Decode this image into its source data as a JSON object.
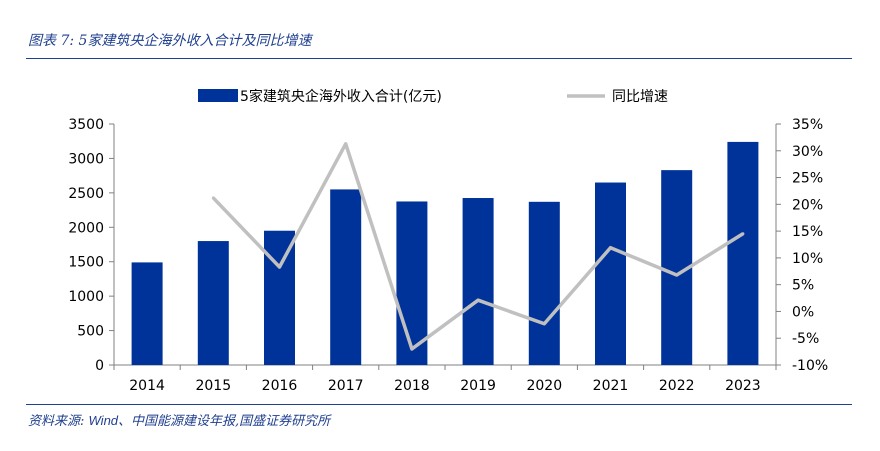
{
  "caption": {
    "label": "图表 7:",
    "title": "5家建筑央企海外收入合计及同比增速"
  },
  "source": {
    "label": "资料来源:",
    "wind": "Wind",
    "text": "、中国能源建设年报,国盛证券研究所"
  },
  "colors": {
    "bar": "#003399",
    "line": "#c0c0c0",
    "axis": "#808080",
    "rule": "#1f3f8f"
  },
  "chart_data": {
    "type": "bar",
    "categories": [
      "2014",
      "2015",
      "2016",
      "2017",
      "2018",
      "2019",
      "2020",
      "2021",
      "2022",
      "2023"
    ],
    "series": [
      {
        "name": "5家建筑央企海外收入合计(亿元)",
        "type": "bar",
        "axis": "left",
        "values": [
          1490,
          1800,
          1950,
          2550,
          2375,
          2425,
          2370,
          2650,
          2830,
          3240
        ]
      },
      {
        "name": "同比增速",
        "type": "line",
        "axis": "right",
        "values": [
          null,
          21.2,
          8.3,
          31.3,
          -7.0,
          2.1,
          -2.3,
          11.9,
          6.8,
          14.5
        ]
      }
    ],
    "y_left": {
      "lim": [
        0,
        3500
      ],
      "ticks": [
        0,
        500,
        1000,
        1500,
        2000,
        2500,
        3000,
        3500
      ],
      "tick_labels": [
        "0",
        "500",
        "1000",
        "1500",
        "2000",
        "2500",
        "3000",
        "3500"
      ]
    },
    "y_right": {
      "lim": [
        -10,
        35
      ],
      "ticks": [
        -10,
        -5,
        0,
        5,
        10,
        15,
        20,
        25,
        30,
        35
      ],
      "tick_labels": [
        "-10%",
        "-5%",
        "0%",
        "5%",
        "10%",
        "15%",
        "20%",
        "25%",
        "30%",
        "35%"
      ]
    },
    "grid": false,
    "legend": "top-center"
  }
}
